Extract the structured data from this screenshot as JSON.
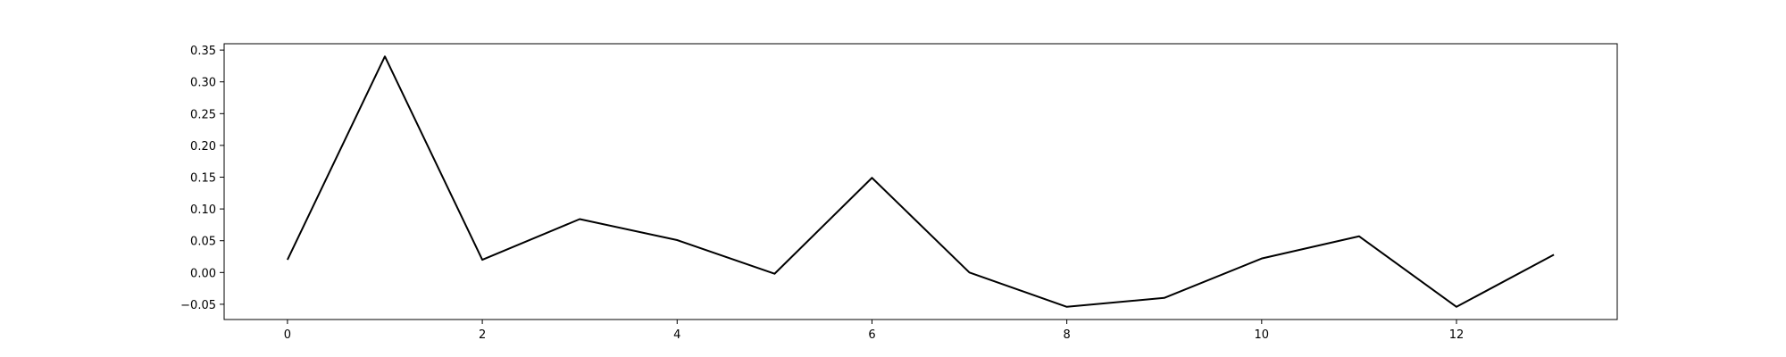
{
  "chart_data": {
    "type": "line",
    "x": [
      0,
      1,
      2,
      3,
      4,
      5,
      6,
      7,
      8,
      9,
      10,
      11,
      12,
      13
    ],
    "series": [
      {
        "values": [
          0.02,
          0.34,
          0.02,
          0.084,
          0.051,
          -0.002,
          0.149,
          0.0,
          -0.054,
          -0.04,
          0.022,
          0.057,
          -0.054,
          0.028
        ]
      }
    ],
    "title": "",
    "xlabel": "",
    "ylabel": "",
    "xlim": [
      -0.65,
      13.65
    ],
    "ylim": [
      -0.074,
      0.36
    ],
    "xticks": [
      0,
      2,
      4,
      6,
      8,
      10,
      12
    ],
    "yticks": [
      -0.05,
      0.0,
      0.05,
      0.1,
      0.15,
      0.2,
      0.25,
      0.3,
      0.35
    ],
    "xtick_labels": [
      "0",
      "2",
      "4",
      "6",
      "8",
      "10",
      "12"
    ],
    "ytick_labels": [
      "−0.05",
      "0.00",
      "0.05",
      "0.10",
      "0.15",
      "0.20",
      "0.25",
      "0.30",
      "0.35"
    ],
    "grid": false,
    "legend": "none",
    "line_color": "#000000"
  }
}
